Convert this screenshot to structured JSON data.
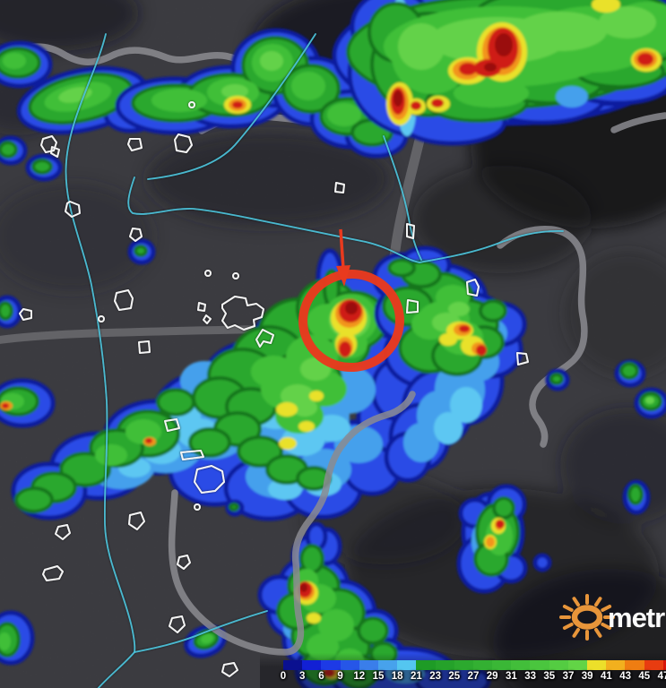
{
  "legend": {
    "tick_labels": [
      "0",
      "3",
      "6",
      "9",
      "12",
      "15",
      "18",
      "21",
      "23",
      "25",
      "27",
      "29",
      "31",
      "33",
      "35",
      "37",
      "39",
      "41",
      "43",
      "45",
      "47"
    ],
    "segment_colors": [
      "#0a1090",
      "#1220d4",
      "#1d3ae6",
      "#2656e8",
      "#3a7eea",
      "#47a2ec",
      "#54c6f0",
      "#1e9b26",
      "#25a22a",
      "#2ca92e",
      "#33b032",
      "#3ab736",
      "#42be3a",
      "#4ac53e",
      "#54cc42",
      "#62d446",
      "#ecdf2a",
      "#f2b01e",
      "#ef7d12",
      "#e83c10",
      "#d61408"
    ]
  },
  "logo": {
    "text": "metr",
    "sun_color": "#e8953a",
    "text_color": "#fafafa"
  },
  "annotation": {
    "highlight_color": "#e83a1e"
  },
  "map_colors": {
    "background": "#47474d",
    "river": "#4cc2da",
    "boundary": "#8b8b90",
    "urban_outline": "#f4f4f4"
  }
}
